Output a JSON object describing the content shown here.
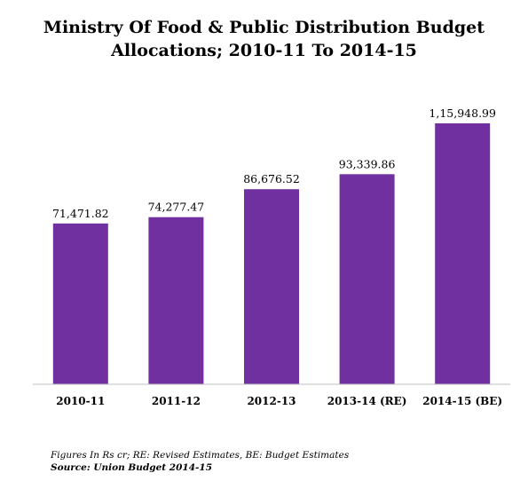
{
  "title_lines": [
    "Ministry Of Food & Public Distribution Budget",
    "Allocations; 2010-11 To 2014-15"
  ],
  "notes": {
    "figures": "Figures In Rs cr; RE: Revised Estimates, BE: Budget Estimates",
    "source": "Source: Union Budget 2014-15"
  },
  "chart_data": {
    "type": "bar",
    "title": "Ministry Of Food & Public Distribution Budget Allocations; 2010-11 To 2014-15",
    "categories": [
      "2010-11",
      "2011-12",
      "2012-13",
      "2013-14 (RE)",
      "2014-15 (BE)"
    ],
    "values": [
      71471.82,
      74277.47,
      86676.52,
      93339.86,
      115948.99
    ],
    "data_labels": [
      "71,471.82",
      "74,277.47",
      "86,676.52",
      "93,339.86",
      "1,15,948.99"
    ],
    "ylim": [
      0,
      140000
    ],
    "grid": false,
    "legend": "none",
    "colors": {
      "bar": "#7030a0",
      "axis": "#bfbfbf"
    }
  }
}
